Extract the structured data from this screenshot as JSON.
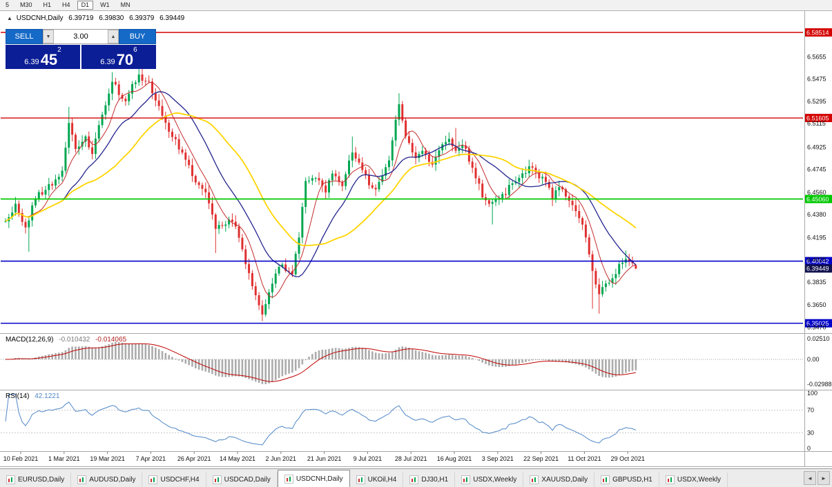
{
  "period_toolbar": {
    "buttons": [
      {
        "label": "5"
      },
      {
        "label": "M30"
      },
      {
        "label": "H1"
      },
      {
        "label": "H4"
      },
      {
        "label": "D1",
        "active": true
      },
      {
        "label": "W1"
      },
      {
        "label": "MN"
      }
    ]
  },
  "chart_header": {
    "collapse_icon": "▲",
    "symbol": "USDCNH,Daily",
    "open": "6.39719",
    "high": "6.39830",
    "low": "6.39379",
    "close": "6.39449"
  },
  "trade_panel": {
    "sell_label": "SELL",
    "buy_label": "BUY",
    "lot_value": "3.00",
    "down_arrow": "▼",
    "up_arrow": "▲",
    "sell_price": {
      "prefix": "6.39",
      "big": "45",
      "sup": "2"
    },
    "buy_price": {
      "prefix": "6.39",
      "big": "70",
      "sup": "6"
    }
  },
  "indicators": {
    "macd": {
      "name": "MACD(12,26,9)",
      "main_value": "-0.010432",
      "signal_value": "-0.014065"
    },
    "rsi": {
      "name": "RSI(14)",
      "value": "42.1221"
    }
  },
  "tab_bar": {
    "scroll_left": "◄",
    "scroll_right": "►",
    "tabs": [
      {
        "label": "EURUSD,Daily"
      },
      {
        "label": "AUDUSD,Daily"
      },
      {
        "label": "USDCHF,H4"
      },
      {
        "label": "USDCAD,Daily"
      },
      {
        "label": "USDCNH,Daily",
        "active": true
      },
      {
        "label": "UKOil,H4"
      },
      {
        "label": "DJ30,H1"
      },
      {
        "label": "USDX,Weekly"
      },
      {
        "label": "XAUUSD,Daily"
      },
      {
        "label": "GBPUSD,H1"
      },
      {
        "label": "USDX,Weekly"
      }
    ]
  },
  "chart_data": {
    "type": "candlestick",
    "symbol": "USDCNH",
    "timeframe": "Daily",
    "bar_count": 190,
    "colors": {
      "up": "#00A651",
      "down": "#E03030",
      "red": "#D40000",
      "green": "#00C800",
      "blue": "#0000C8",
      "dark": "#13134F",
      "hist": "#ABABAB",
      "signal": "#C00000",
      "rsi": "#4E86C6"
    },
    "price_axis": {
      "labels": [
        "6.5655",
        "6.5475",
        "6.5295",
        "6.5115",
        "6.4925",
        "6.4745",
        "6.4560",
        "6.4380",
        "6.4195",
        "6.4015",
        "6.3835",
        "6.3650",
        "6.3470"
      ]
    },
    "levels": [
      {
        "price": 6.58514,
        "label": "6.58514",
        "color": "red",
        "line": true,
        "width": 1.4
      },
      {
        "price": 6.51605,
        "label": "6.51605",
        "color": "red",
        "line": true,
        "width": 1.4
      },
      {
        "price": 6.4506,
        "label": "6.45060",
        "color": "green",
        "line": true,
        "width": 1.8
      },
      {
        "price": 6.40042,
        "label": "6.40042",
        "color": "blue",
        "line": true,
        "width": 1.6
      },
      {
        "price": 6.39449,
        "label": "6.39449",
        "color": "dark",
        "line": false,
        "width": 0
      },
      {
        "price": 6.35025,
        "label": "6.35025",
        "color": "blue",
        "line": true,
        "width": 1.6
      }
    ],
    "x_axis_dates": [
      "10 Feb 2021",
      "1 Mar 2021",
      "19 Mar 2021",
      "7 Apr 2021",
      "26 Apr 2021",
      "14 May 2021",
      "2 Jun 2021",
      "21 Jun 2021",
      "9 Jul 2021",
      "28 Jul 2021",
      "16 Aug 2021",
      "3 Sep 2021",
      "22 Sep 2021",
      "11 Oct 2021",
      "29 Oct 2021"
    ],
    "close_anchors": [
      [
        0,
        6.432
      ],
      [
        3,
        6.446
      ],
      [
        6,
        6.427
      ],
      [
        9,
        6.452
      ],
      [
        12,
        6.459
      ],
      [
        15,
        6.465
      ],
      [
        17,
        6.472
      ],
      [
        19,
        6.512
      ],
      [
        21,
        6.493
      ],
      [
        24,
        6.499
      ],
      [
        26,
        6.489
      ],
      [
        29,
        6.519
      ],
      [
        32,
        6.546
      ],
      [
        34,
        6.536
      ],
      [
        36,
        6.529
      ],
      [
        38,
        6.541
      ],
      [
        40,
        6.549
      ],
      [
        43,
        6.544
      ],
      [
        45,
        6.531
      ],
      [
        48,
        6.512
      ],
      [
        52,
        6.492
      ],
      [
        57,
        6.466
      ],
      [
        60,
        6.455
      ],
      [
        63,
        6.426
      ],
      [
        66,
        6.43
      ],
      [
        68,
        6.433
      ],
      [
        70,
        6.42
      ],
      [
        72,
        6.399
      ],
      [
        74,
        6.379
      ],
      [
        77,
        6.359
      ],
      [
        79,
        6.373
      ],
      [
        81,
        6.391
      ],
      [
        83,
        6.396
      ],
      [
        86,
        6.392
      ],
      [
        88,
        6.421
      ],
      [
        90,
        6.463
      ],
      [
        93,
        6.466
      ],
      [
        96,
        6.458
      ],
      [
        98,
        6.471
      ],
      [
        101,
        6.462
      ],
      [
        104,
        6.489
      ],
      [
        106,
        6.478
      ],
      [
        109,
        6.463
      ],
      [
        111,
        6.458
      ],
      [
        113,
        6.471
      ],
      [
        115,
        6.481
      ],
      [
        118,
        6.528
      ],
      [
        120,
        6.501
      ],
      [
        123,
        6.483
      ],
      [
        125,
        6.489
      ],
      [
        128,
        6.479
      ],
      [
        131,
        6.493
      ],
      [
        133,
        6.499
      ],
      [
        135,
        6.491
      ],
      [
        137,
        6.496
      ],
      [
        139,
        6.483
      ],
      [
        141,
        6.469
      ],
      [
        143,
        6.453
      ],
      [
        146,
        6.447
      ],
      [
        149,
        6.453
      ],
      [
        152,
        6.463
      ],
      [
        155,
        6.471
      ],
      [
        157,
        6.477
      ],
      [
        160,
        6.469
      ],
      [
        162,
        6.463
      ],
      [
        164,
        6.452
      ],
      [
        166,
        6.461
      ],
      [
        168,
        6.453
      ],
      [
        170,
        6.445
      ],
      [
        172,
        6.437
      ],
      [
        174,
        6.421
      ],
      [
        176,
        6.391
      ],
      [
        178,
        6.373
      ],
      [
        180,
        6.381
      ],
      [
        182,
        6.386
      ],
      [
        184,
        6.397
      ],
      [
        186,
        6.403
      ],
      [
        188,
        6.397
      ],
      [
        189,
        6.39449
      ]
    ],
    "wick_extremes": [
      [
        7,
        6.408,
        "l"
      ],
      [
        19,
        6.525,
        "h"
      ],
      [
        32,
        6.553,
        "h"
      ],
      [
        40,
        6.552,
        "h"
      ],
      [
        63,
        6.407,
        "l"
      ],
      [
        77,
        6.352,
        "l"
      ],
      [
        90,
        6.468,
        "h"
      ],
      [
        104,
        6.501,
        "h"
      ],
      [
        118,
        6.536,
        "h"
      ],
      [
        135,
        6.508,
        "h"
      ],
      [
        146,
        6.43,
        "l"
      ],
      [
        176,
        6.362,
        "l"
      ],
      [
        178,
        6.358,
        "l"
      ],
      [
        186,
        6.409,
        "h"
      ]
    ],
    "last_bar": {
      "o": 6.39719,
      "h": 6.3983,
      "l": 6.39379,
      "c": 6.39449
    },
    "moving_averages": [
      {
        "name": "fast",
        "period": 7,
        "color": "#C42B2B",
        "width": 1
      },
      {
        "name": "medium",
        "period": 18,
        "color": "#23238F",
        "width": 1.3
      },
      {
        "name": "slow",
        "period": 34,
        "color": "#FFD400",
        "width": 1.8
      }
    ],
    "macd": {
      "fast": 12,
      "slow": 26,
      "signal": 9,
      "axis_labels": [
        "0.02510",
        "0.00",
        "-0.02988"
      ]
    },
    "rsi": {
      "period": 14,
      "levels": [
        70,
        30
      ],
      "axis_labels": [
        "100",
        "70",
        "30",
        "0"
      ]
    }
  }
}
